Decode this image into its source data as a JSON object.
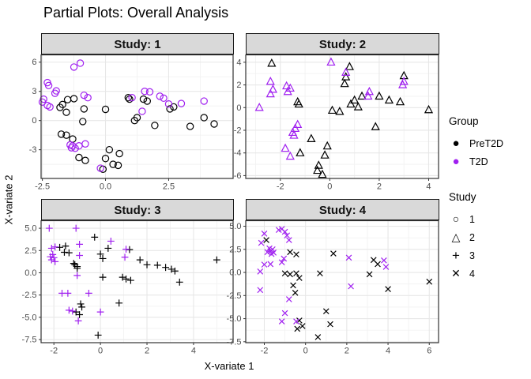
{
  "colors": {
    "pret2d": "#000000",
    "t2d": "#A020F0",
    "strip_bg": "#D9D9D9",
    "grid_major": "#E7E7E7",
    "grid_minor": "#F2F2F2",
    "panel_border": "#333333",
    "tick_text": "#4D4D4D"
  },
  "chart_data": {
    "type": "scatter",
    "title": "Partial Plots: Overall Analysis",
    "xlabel": "X-variate 1",
    "ylabel": "X-variate 2",
    "grid": true,
    "legend_position": "right",
    "legend": {
      "group_title": "Group",
      "groups": [
        {
          "label": "PreT2D",
          "color": "#000000"
        },
        {
          "label": "T2D",
          "color": "#A020F0"
        }
      ],
      "study_title": "Study",
      "studies": [
        {
          "label": "1",
          "shape": "circle"
        },
        {
          "label": "2",
          "shape": "triangle"
        },
        {
          "label": "3",
          "shape": "plus"
        },
        {
          "label": "4",
          "shape": "x"
        }
      ]
    },
    "facets": [
      {
        "label": "Study: 1",
        "shape": "circle",
        "x_range": [
          -2.55,
          5.05
        ],
        "y_range": [
          -5.95,
          6.75
        ],
        "x_ticks": [
          -2.5,
          0.0,
          2.5
        ],
        "x_tick_labels": [
          "-2.5",
          "0.0",
          "2.5"
        ],
        "y_ticks": [
          -3,
          0,
          3,
          6
        ],
        "y_tick_labels": [
          "-3",
          "0",
          "3",
          "6"
        ],
        "series": {
          "PreT2D": [
            [
              -1.5,
              2.15
            ],
            [
              -1.25,
              2.25
            ],
            [
              -1.7,
              1.65
            ],
            [
              -1.8,
              1.35
            ],
            [
              -1.55,
              0.85
            ],
            [
              -0.85,
              1.2
            ],
            [
              0.0,
              1.15
            ],
            [
              -0.9,
              -0.1
            ],
            [
              0.9,
              2.35
            ],
            [
              0.95,
              2.2
            ],
            [
              1.5,
              2.2
            ],
            [
              1.65,
              2.0
            ],
            [
              2.55,
              1.2
            ],
            [
              2.7,
              1.4
            ],
            [
              1.25,
              0.3
            ],
            [
              1.15,
              0.0
            ],
            [
              1.95,
              -0.5
            ],
            [
              3.35,
              -0.6
            ],
            [
              3.9,
              0.3
            ],
            [
              4.3,
              -0.35
            ],
            [
              -1.75,
              -1.4
            ],
            [
              -1.55,
              -1.5
            ],
            [
              -1.3,
              -1.9
            ],
            [
              -1.05,
              -3.8
            ],
            [
              -0.8,
              -4.1
            ],
            [
              0.15,
              -3.0
            ],
            [
              0.55,
              -3.4
            ],
            [
              0.0,
              -3.9
            ],
            [
              0.3,
              -4.5
            ],
            [
              0.5,
              -4.6
            ],
            [
              -0.1,
              -5.0
            ]
          ],
          "T2D": [
            [
              -1.25,
              5.5
            ],
            [
              -1.0,
              5.9
            ],
            [
              -2.3,
              3.9
            ],
            [
              -2.25,
              3.6
            ],
            [
              -1.95,
              3.05
            ],
            [
              -2.0,
              2.8
            ],
            [
              -2.45,
              2.2
            ],
            [
              -2.5,
              1.9
            ],
            [
              -2.3,
              1.55
            ],
            [
              -2.2,
              1.4
            ],
            [
              -0.85,
              2.6
            ],
            [
              -0.7,
              2.35
            ],
            [
              1.05,
              2.35
            ],
            [
              1.55,
              3.0
            ],
            [
              1.75,
              2.95
            ],
            [
              2.15,
              2.5
            ],
            [
              2.3,
              2.3
            ],
            [
              2.5,
              1.7
            ],
            [
              3.0,
              1.75
            ],
            [
              3.9,
              2.0
            ],
            [
              1.45,
              0.95
            ],
            [
              -1.4,
              -2.5
            ],
            [
              -1.3,
              -2.6
            ],
            [
              -1.35,
              -2.8
            ],
            [
              -1.2,
              -2.85
            ],
            [
              -1.05,
              -2.6
            ],
            [
              -0.8,
              -2.4
            ],
            [
              -0.2,
              -4.9
            ]
          ]
        }
      },
      {
        "label": "Study: 2",
        "shape": "triangle",
        "x_range": [
          -3.4,
          4.4
        ],
        "y_range": [
          -6.25,
          4.65
        ],
        "x_ticks": [
          -2,
          0,
          2,
          4
        ],
        "x_tick_labels": [
          "-2",
          "0",
          "2",
          "4"
        ],
        "y_ticks": [
          -6,
          -4,
          -2,
          0,
          2,
          4
        ],
        "y_tick_labels": [
          "-6",
          "-4",
          "-2",
          "0",
          "2",
          "4"
        ],
        "series": {
          "PreT2D": [
            [
              -2.35,
              3.9
            ],
            [
              0.8,
              3.6
            ],
            [
              0.65,
              2.7
            ],
            [
              0.6,
              2.1
            ],
            [
              -1.3,
              0.5
            ],
            [
              -1.25,
              0.3
            ],
            [
              0.1,
              -0.25
            ],
            [
              0.4,
              -0.35
            ],
            [
              0.85,
              0.3
            ],
            [
              1.0,
              0.65
            ],
            [
              1.15,
              0.05
            ],
            [
              1.3,
              1.0
            ],
            [
              2.0,
              1.0
            ],
            [
              2.4,
              0.65
            ],
            [
              2.85,
              0.5
            ],
            [
              3.0,
              2.8
            ],
            [
              4.0,
              -0.2
            ],
            [
              1.85,
              -1.7
            ],
            [
              -0.75,
              -2.75
            ],
            [
              -1.2,
              -4.0
            ],
            [
              -0.1,
              -3.4
            ],
            [
              -0.2,
              -4.2
            ],
            [
              -0.45,
              -5.1
            ],
            [
              -0.5,
              -5.55
            ],
            [
              -0.3,
              -5.9
            ]
          ],
          "T2D": [
            [
              -2.85,
              0.0
            ],
            [
              -2.4,
              2.3
            ],
            [
              -2.3,
              1.6
            ],
            [
              -2.4,
              1.2
            ],
            [
              -1.75,
              1.9
            ],
            [
              -1.6,
              1.7
            ],
            [
              -1.7,
              1.4
            ],
            [
              0.05,
              4.0
            ],
            [
              0.65,
              3.1
            ],
            [
              1.6,
              1.4
            ],
            [
              1.55,
              1.0
            ],
            [
              3.0,
              2.3
            ],
            [
              2.95,
              2.0
            ],
            [
              -1.3,
              -1.5
            ],
            [
              -1.4,
              -1.85
            ],
            [
              -1.5,
              -2.2
            ],
            [
              -1.45,
              -2.45
            ],
            [
              -1.8,
              -3.6
            ],
            [
              -1.6,
              -4.3
            ]
          ]
        }
      },
      {
        "label": "Study: 3",
        "shape": "plus",
        "x_range": [
          -2.55,
          5.7
        ],
        "y_range": [
          -7.85,
          5.85
        ],
        "x_ticks": [
          -2,
          0,
          2,
          4
        ],
        "x_tick_labels": [
          "-2",
          "0",
          "2",
          "4"
        ],
        "y_ticks": [
          -7.5,
          -5.0,
          -2.5,
          0.0,
          2.5,
          5.0
        ],
        "y_tick_labels": [
          "-7.5",
          "-5.0",
          "-2.5",
          "0.0",
          "2.5",
          "5.0"
        ],
        "series": {
          "PreT2D": [
            [
              -1.5,
              3.0
            ],
            [
              -1.75,
              2.85
            ],
            [
              -0.25,
              4.0
            ],
            [
              0.33,
              2.75
            ],
            [
              -1.55,
              2.3
            ],
            [
              -1.35,
              2.25
            ],
            [
              -1.15,
              1.05
            ],
            [
              -1.1,
              0.9
            ],
            [
              -1.0,
              0.7
            ],
            [
              -1.0,
              0.5
            ],
            [
              0.0,
              2.1
            ],
            [
              0.1,
              1.6
            ],
            [
              1.25,
              2.6
            ],
            [
              1.7,
              1.45
            ],
            [
              2.0,
              0.9
            ],
            [
              2.45,
              0.85
            ],
            [
              2.8,
              0.6
            ],
            [
              3.05,
              0.4
            ],
            [
              3.2,
              0.2
            ],
            [
              0.1,
              -0.5
            ],
            [
              0.95,
              -0.5
            ],
            [
              1.1,
              -0.7
            ],
            [
              1.3,
              -0.85
            ],
            [
              3.4,
              -1.05
            ],
            [
              5.0,
              1.45
            ],
            [
              -0.85,
              -3.5
            ],
            [
              -0.8,
              -3.85
            ],
            [
              -1.05,
              -4.4
            ],
            [
              -0.9,
              -4.7
            ],
            [
              0.8,
              -3.4
            ],
            [
              -0.1,
              -7.0
            ]
          ],
          "T2D": [
            [
              -2.2,
              5.0
            ],
            [
              -1.05,
              5.0
            ],
            [
              -0.9,
              3.2
            ],
            [
              -1.95,
              2.9
            ],
            [
              -2.1,
              2.75
            ],
            [
              -2.05,
              2.05
            ],
            [
              -2.15,
              1.8
            ],
            [
              -2.0,
              1.7
            ],
            [
              -2.1,
              1.45
            ],
            [
              -1.95,
              1.25
            ],
            [
              -0.9,
              1.95
            ],
            [
              -1.0,
              -0.3
            ],
            [
              0.45,
              3.55
            ],
            [
              1.1,
              2.65
            ],
            [
              1.05,
              1.75
            ],
            [
              -1.4,
              -2.3
            ],
            [
              -1.65,
              -2.3
            ],
            [
              -0.5,
              -2.3
            ],
            [
              -1.35,
              -4.2
            ],
            [
              -1.2,
              -4.3
            ],
            [
              -0.95,
              -5.4
            ],
            [
              0.0,
              -4.4
            ]
          ]
        }
      },
      {
        "label": "Study: 4",
        "shape": "x",
        "x_range": [
          -2.9,
          6.45
        ],
        "y_range": [
          -7.6,
          5.6
        ],
        "x_ticks": [
          -2,
          0,
          2,
          4,
          6
        ],
        "x_tick_labels": [
          "-2",
          "0",
          "2",
          "4",
          "6"
        ],
        "y_ticks": [
          -7.5,
          -5.0,
          -2.5,
          0.0,
          2.5,
          5.0
        ],
        "y_tick_labels": [
          "-7.5",
          "-5.0",
          "-2.5",
          "0.0",
          "2.5",
          "5.0"
        ],
        "series": {
          "PreT2D": [
            [
              -1.9,
              3.5
            ],
            [
              -0.75,
              2.2
            ],
            [
              -0.45,
              1.95
            ],
            [
              -1.0,
              -0.1
            ],
            [
              -0.75,
              -0.2
            ],
            [
              -0.45,
              -0.1
            ],
            [
              -0.3,
              -0.6
            ],
            [
              -0.6,
              -1.4
            ],
            [
              -0.5,
              -2.2
            ],
            [
              0.7,
              -0.1
            ],
            [
              1.35,
              2.05
            ],
            [
              3.3,
              1.35
            ],
            [
              3.5,
              0.9
            ],
            [
              3.1,
              -0.2
            ],
            [
              4.0,
              -1.8
            ],
            [
              6.0,
              -1.0
            ],
            [
              1.0,
              -4.2
            ],
            [
              1.2,
              -5.6
            ],
            [
              0.6,
              -7.0
            ],
            [
              -0.3,
              -5.2
            ],
            [
              -0.15,
              -5.8
            ],
            [
              -0.4,
              -6.1
            ]
          ],
          "T2D": [
            [
              -2.0,
              4.2
            ],
            [
              -2.15,
              3.2
            ],
            [
              -1.3,
              4.6
            ],
            [
              -1.15,
              4.7
            ],
            [
              -1.0,
              4.4
            ],
            [
              -0.9,
              4.0
            ],
            [
              -0.8,
              3.5
            ],
            [
              -1.75,
              2.6
            ],
            [
              -1.6,
              2.5
            ],
            [
              -1.7,
              2.3
            ],
            [
              -1.85,
              2.2
            ],
            [
              -1.55,
              2.15
            ],
            [
              -1.65,
              2.0
            ],
            [
              -2.0,
              0.85
            ],
            [
              -1.7,
              0.9
            ],
            [
              -2.2,
              0.1
            ],
            [
              -1.15,
              1.1
            ],
            [
              -1.05,
              1.5
            ],
            [
              -2.2,
              -1.9
            ],
            [
              -0.8,
              -2.9
            ],
            [
              -1.0,
              -4.4
            ],
            [
              -1.15,
              -5.3
            ],
            [
              -0.45,
              -5.3
            ],
            [
              2.1,
              1.6
            ],
            [
              3.8,
              1.3
            ],
            [
              3.9,
              0.6
            ],
            [
              2.2,
              -1.5
            ]
          ]
        }
      }
    ]
  }
}
